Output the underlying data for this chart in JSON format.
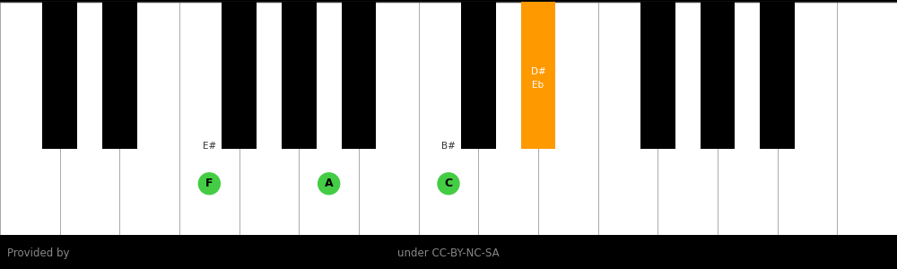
{
  "background_color": "#000000",
  "footer_text_left": "Provided by",
  "footer_text_right": "under CC-BY-NC-SA",
  "footer_color": "#888888",
  "white_key_color": "#ffffff",
  "black_key_color": "#000000",
  "white_key_border": "#aaaaaa",
  "num_white_keys": 15,
  "highlighted_white_keys": [
    {
      "index": 3,
      "label": "F",
      "sublabel": "E#",
      "color": "#44cc44",
      "text_color": "#000000"
    },
    {
      "index": 5,
      "label": "A",
      "sublabel": "",
      "color": "#44cc44",
      "text_color": "#000000"
    },
    {
      "index": 7,
      "label": "C",
      "sublabel": "B#",
      "color": "#44cc44",
      "text_color": "#000000"
    }
  ],
  "highlighted_black_keys": [
    {
      "bk_index": 6,
      "label": "Eb",
      "sublabel": "D#",
      "color": "#ff9900",
      "text_color": "#ffffff"
    }
  ],
  "black_key_positions": [
    0,
    1,
    3,
    4,
    5,
    7,
    8,
    10,
    11,
    12
  ]
}
